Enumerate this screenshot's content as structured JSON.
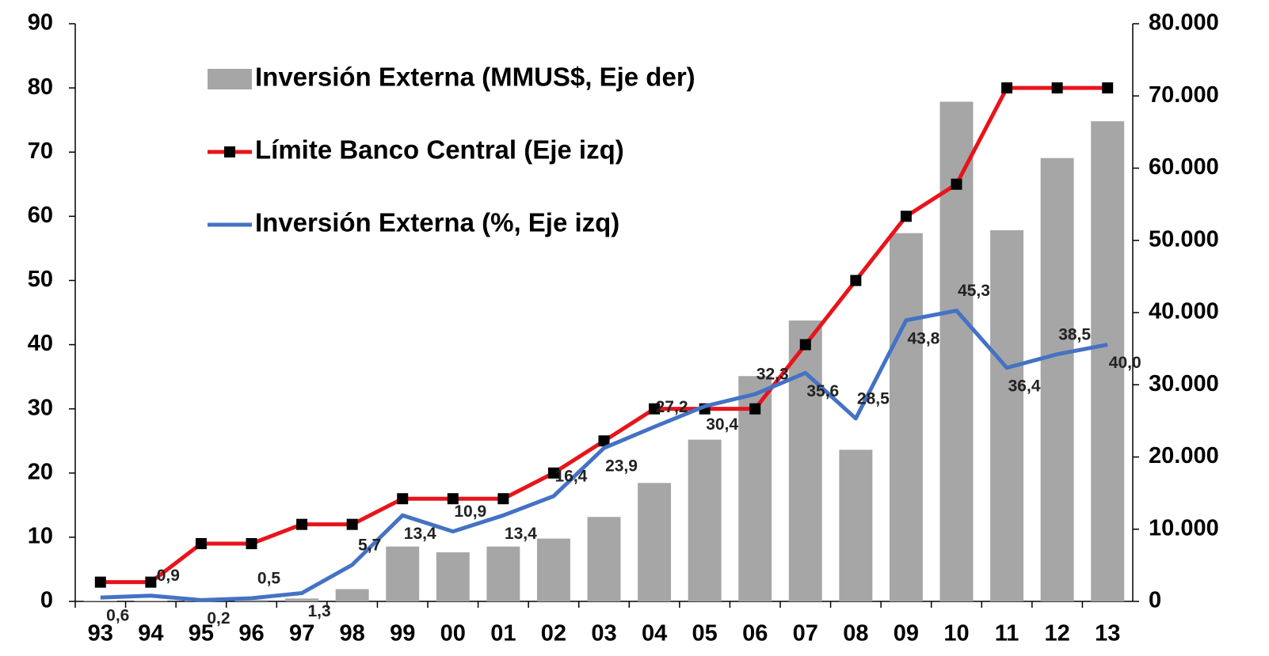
{
  "chart_data": {
    "type": "bar_line",
    "categories": [
      "93",
      "94",
      "95",
      "96",
      "97",
      "98",
      "99",
      "00",
      "01",
      "02",
      "03",
      "04",
      "05",
      "06",
      "07",
      "08",
      "09",
      "10",
      "11",
      "12",
      "13"
    ],
    "series": [
      {
        "name": "Inversión Externa (MMUS$, Eje der)",
        "type": "bar",
        "axis": "y2",
        "color": "#a6a6a6",
        "values": [
          100,
          100,
          100,
          200,
          400,
          1700,
          7600,
          6800,
          7600,
          8700,
          11700,
          16400,
          22400,
          31200,
          38900,
          21000,
          51000,
          69200,
          51400,
          61400,
          66500
        ]
      },
      {
        "name": "Límite Banco Central (Eje izq)",
        "type": "line",
        "axis": "y",
        "color": "#e8141b",
        "marker_color": "#000000",
        "values": [
          3,
          3,
          9,
          9,
          12,
          12,
          16,
          16,
          16,
          20,
          25,
          30,
          30,
          30,
          40,
          50,
          60,
          65,
          80,
          80,
          80
        ]
      },
      {
        "name": "Inversión Externa (%, Eje izq)",
        "type": "line",
        "axis": "y",
        "color": "#4472c4",
        "values": [
          0.6,
          0.9,
          0.2,
          0.5,
          1.3,
          5.7,
          13.4,
          10.9,
          13.4,
          16.4,
          23.9,
          27.2,
          30.4,
          32.3,
          35.6,
          28.5,
          43.8,
          45.3,
          36.4,
          38.5,
          40.0
        ],
        "value_labels": [
          "0,6",
          "0,9",
          "0,2",
          "0,5",
          "1,3",
          "5,7",
          "13,4",
          "10,9",
          "13,4",
          "16,4",
          "23,9",
          "27,2",
          "30,4",
          "32,3",
          "35,6",
          "28,5",
          "43,8",
          "45,3",
          "36,4",
          "38,5",
          "40,0"
        ]
      }
    ],
    "ylim": [
      0,
      90
    ],
    "yticks": [
      0,
      10,
      20,
      30,
      40,
      50,
      60,
      70,
      80,
      90
    ],
    "y2lim": [
      0,
      80000
    ],
    "y2ticks": [
      0,
      {
        "value": 10000,
        "label": "10.000"
      },
      {
        "value": 20000,
        "label": "20.000"
      },
      {
        "value": 30000,
        "label": "30.000"
      },
      {
        "value": 40000,
        "label": "40.000"
      },
      {
        "value": 50000,
        "label": "50.000"
      },
      {
        "value": 60000,
        "label": "60.000"
      },
      {
        "value": 70000,
        "label": "70.000"
      },
      {
        "value": 80000,
        "label": "80.000"
      }
    ],
    "legend": "upper left"
  }
}
